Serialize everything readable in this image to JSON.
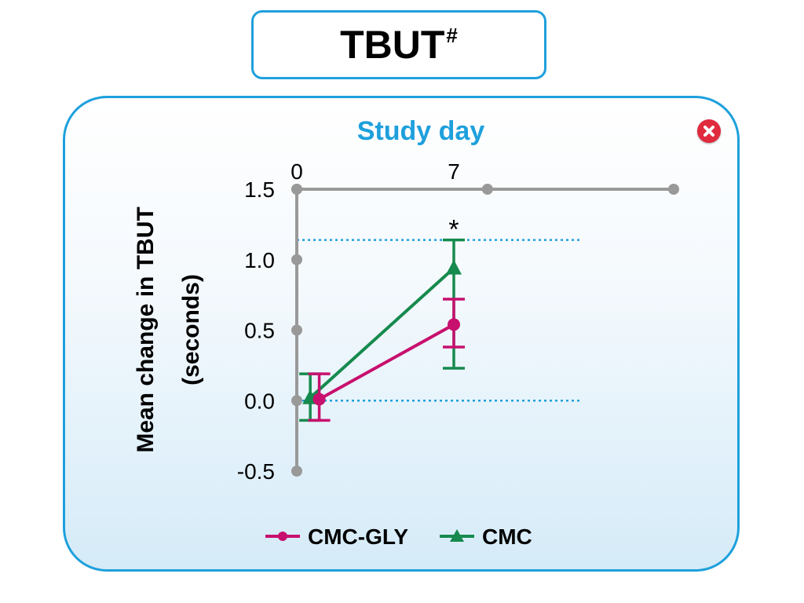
{
  "header": {
    "title": "TBUT",
    "title_superscript": "#"
  },
  "close_button": {
    "icon": "close-icon",
    "color": "#e02a3e"
  },
  "chart_data": {
    "type": "line",
    "top_axis_label": "Study day",
    "ylabel_line1": "Mean change in TBUT",
    "ylabel_line2": "(seconds)",
    "ylim": [
      -0.5,
      1.5
    ],
    "yticks": [
      "-0.5",
      "0.0",
      "0.5",
      "1.0",
      "1.5"
    ],
    "yticks_values": [
      -0.5,
      0.0,
      0.5,
      1.0,
      1.5
    ],
    "x_tick_labels": [
      {
        "label": "0",
        "day": 0
      },
      {
        "label": "7",
        "day": 7
      }
    ],
    "x_axis_markers_days": [
      0,
      8.5,
      16.8
    ],
    "xlim": [
      0,
      16.8
    ],
    "reference_lines": [
      {
        "y": 1.14,
        "color": "#1ea0dc",
        "style": "dotted"
      },
      {
        "y": 0.0,
        "color": "#1ea0dc",
        "style": "dotted"
      }
    ],
    "significance_marker": {
      "text": "*",
      "day": 7,
      "y": 1.22
    },
    "series": [
      {
        "name": "CMC-GLY",
        "color": "#c8106e",
        "marker": "circle",
        "x": [
          1,
          7
        ],
        "y": [
          0.01,
          0.54
        ],
        "error_low": [
          -0.14,
          0.38
        ],
        "error_high": [
          0.19,
          0.72
        ]
      },
      {
        "name": "CMC",
        "color": "#168a4e",
        "marker": "triangle",
        "x": [
          0.6,
          7
        ],
        "y": [
          0.02,
          0.94
        ],
        "error_low": [
          -0.14,
          0.23
        ],
        "error_high": [
          0.19,
          1.14
        ]
      }
    ],
    "axis_color": "#999999",
    "accent_color": "#1ea0dc",
    "legend_position": "bottom-center"
  }
}
